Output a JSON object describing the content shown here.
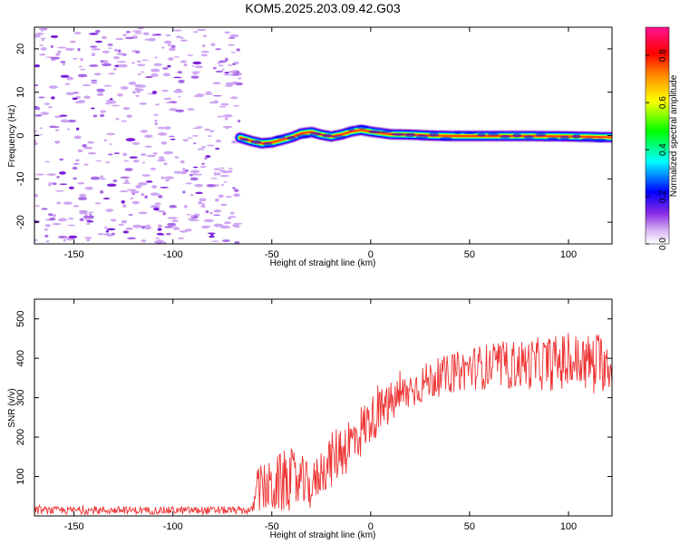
{
  "title": "KOM5.2025.203.09.42.G03",
  "chart_data": [
    {
      "type": "heatmap",
      "xlabel": "Height of straight line (km)",
      "ylabel": "Frequency (Hz)",
      "xlim": [
        -170,
        122
      ],
      "ylim": [
        -25,
        25
      ],
      "xticks": [
        -150,
        -100,
        -50,
        0,
        50,
        100
      ],
      "yticks": [
        -20,
        -10,
        0,
        10,
        20
      ],
      "signal_start_km": -66,
      "noise_region": [
        -170,
        -66
      ],
      "frequency_track": {
        "x": [
          -66,
          -60,
          -55,
          -50,
          -45,
          -40,
          -35,
          -30,
          -25,
          -20,
          -15,
          -10,
          -5,
          0,
          5,
          10,
          20,
          30,
          40,
          60,
          80,
          100,
          122
        ],
        "y": [
          -0.5,
          -1.3,
          -1.8,
          -1.6,
          -1.0,
          -0.4,
          0.5,
          0.8,
          0.2,
          -0.2,
          0.2,
          0.9,
          1.3,
          0.9,
          0.6,
          0.3,
          0.2,
          0.0,
          -0.1,
          -0.1,
          -0.1,
          -0.2,
          -0.4
        ]
      },
      "colorbar": {
        "label": "Normalized spectral amplitude",
        "range": [
          0.0,
          0.92
        ],
        "ticks": [
          "0.0",
          "0.2",
          "0.4",
          "0.6",
          "0.8"
        ],
        "colors": [
          "#ffffff",
          "#d8b8f4",
          "#8a2be2",
          "#0000ff",
          "#00ffff",
          "#00ff00",
          "#ffff00",
          "#ff8800",
          "#ff0000",
          "#ff1493"
        ]
      }
    },
    {
      "type": "line",
      "xlabel": "Height of straight line (km)",
      "ylabel": "SNR (v/v)",
      "xlim": [
        -170,
        122
      ],
      "ylim": [
        0,
        550
      ],
      "xticks": [
        -150,
        -100,
        -50,
        0,
        50,
        100
      ],
      "yticks": [
        100,
        200,
        300,
        400,
        500
      ],
      "color": "#ee3333",
      "envelope": {
        "x": [
          -170,
          -60,
          -57,
          -50,
          -45,
          -40,
          -35,
          -30,
          -25,
          -20,
          -15,
          -10,
          -5,
          0,
          10,
          20,
          30,
          40,
          50,
          60,
          80,
          100,
          122
        ],
        "center": [
          14,
          14,
          70,
          70,
          85,
          90,
          85,
          70,
          115,
          140,
          170,
          185,
          215,
          245,
          285,
          320,
          345,
          360,
          375,
          380,
          385,
          390,
          390
        ],
        "spread": [
          10,
          10,
          60,
          70,
          80,
          80,
          70,
          55,
          60,
          70,
          75,
          75,
          70,
          60,
          55,
          50,
          50,
          50,
          55,
          60,
          65,
          75,
          75
        ]
      }
    }
  ]
}
